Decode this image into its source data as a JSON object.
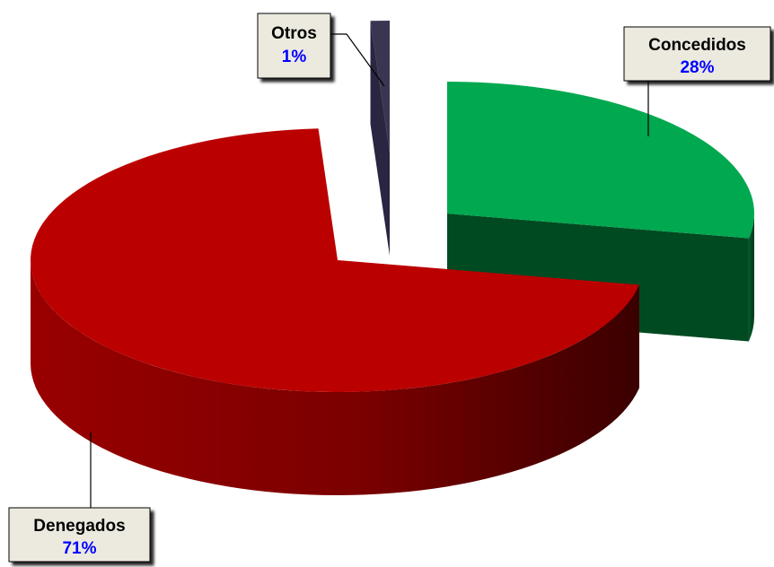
{
  "chart_data": {
    "type": "pie",
    "style": "3d-exploded",
    "categories": [
      "Denegados",
      "Concedidos",
      "Otros"
    ],
    "values": [
      71,
      28,
      1
    ],
    "value_labels": [
      "71%",
      "28%",
      "1%"
    ],
    "colors": {
      "Denegados": "#bb0000",
      "Concedidos": "#00a84f",
      "Otros": "#3a3550"
    },
    "label_colors": {
      "name": "#000000",
      "percent": "#0000ff",
      "box_fill": "#eceadf",
      "leader_line": "#000000"
    }
  }
}
